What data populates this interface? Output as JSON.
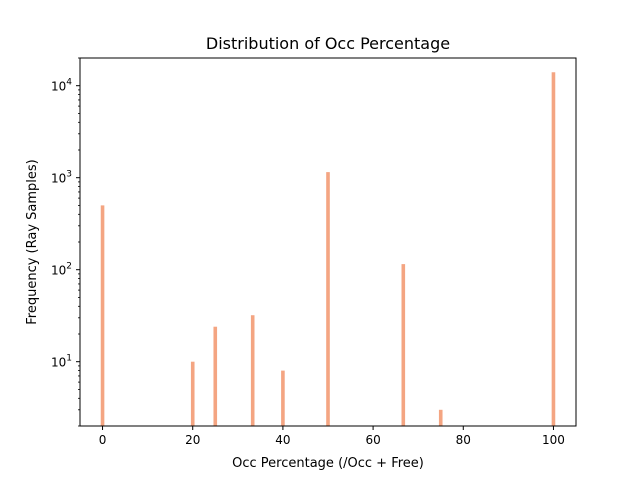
{
  "chart_data": {
    "type": "bar",
    "title": "Distribution of Occ Percentage",
    "xlabel": "Occ Percentage (/Occ + Free)",
    "ylabel": "Frequency (Ray Samples)",
    "xlim": [
      -5,
      105
    ],
    "ylim": [
      2,
      20000
    ],
    "yscale": "log",
    "x_ticks": [
      0,
      20,
      40,
      60,
      80,
      100
    ],
    "y_ticks": [
      {
        "value": 10,
        "base": "10",
        "exp": "1"
      },
      {
        "value": 100,
        "base": "10",
        "exp": "2"
      },
      {
        "value": 1000,
        "base": "10",
        "exp": "3"
      },
      {
        "value": 10000,
        "base": "10",
        "exp": "4"
      }
    ],
    "bin_width": 0.8,
    "bar_color": "#f4a582",
    "bars": [
      {
        "x": 0,
        "value": 500
      },
      {
        "x": 20,
        "value": 10
      },
      {
        "x": 25,
        "value": 24
      },
      {
        "x": 33.3,
        "value": 32
      },
      {
        "x": 40,
        "value": 8
      },
      {
        "x": 50,
        "value": 1150
      },
      {
        "x": 66.7,
        "value": 115
      },
      {
        "x": 75,
        "value": 3
      },
      {
        "x": 100,
        "value": 14000
      }
    ],
    "grid": false,
    "legend": "none"
  }
}
